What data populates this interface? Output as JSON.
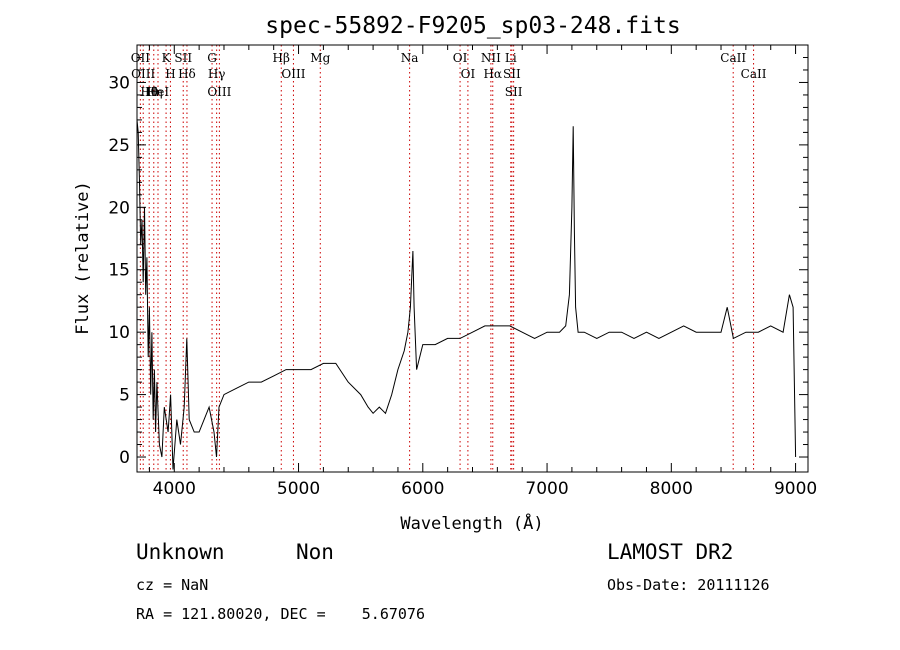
{
  "chart_data": {
    "type": "line",
    "title": "spec-55892-F9205_sp03-248.fits",
    "xlabel": "Wavelength (Å)",
    "ylabel": "Flux (relative)",
    "xlim": [
      3700,
      9100
    ],
    "ylim": [
      -1.2,
      33
    ],
    "x_ticks": [
      4000,
      5000,
      6000,
      7000,
      8000,
      9000
    ],
    "y_ticks": [
      0,
      5,
      10,
      15,
      20,
      25,
      30
    ],
    "series": [
      {
        "x": [
          3700,
          3710,
          3720,
          3730,
          3740,
          3750,
          3760,
          3770,
          3780,
          3790,
          3800,
          3810,
          3820,
          3830,
          3840,
          3850,
          3860,
          3880,
          3900,
          3920,
          3950,
          3970,
          3990,
          4020,
          4050,
          4080,
          4101,
          4120,
          4160,
          4200,
          4240,
          4280,
          4320,
          4340,
          4360,
          4400,
          4500,
          4600,
          4700,
          4800,
          4900,
          5000,
          5100,
          5200,
          5300,
          5400,
          5500,
          5560,
          5600,
          5650,
          5700,
          5750,
          5800,
          5850,
          5880,
          5900,
          5920,
          5930,
          5950,
          6000,
          6100,
          6200,
          6300,
          6400,
          6500,
          6600,
          6700,
          6800,
          6900,
          7000,
          7100,
          7150,
          7180,
          7200,
          7210,
          7220,
          7230,
          7250,
          7300,
          7400,
          7500,
          7600,
          7700,
          7800,
          7900,
          8000,
          8100,
          8200,
          8300,
          8400,
          8450,
          8500,
          8600,
          8700,
          8800,
          8900,
          8950,
          8980,
          9000
        ],
        "y": [
          27,
          26,
          22,
          17,
          19,
          14,
          20,
          13,
          16,
          8,
          12,
          5,
          10,
          3,
          7,
          2,
          6,
          1,
          0,
          4,
          2,
          5,
          -1,
          3,
          1,
          4,
          9.5,
          3,
          2,
          2,
          3,
          4,
          2,
          0,
          4,
          5,
          5.5,
          6,
          6,
          6.5,
          7,
          7,
          7,
          7.5,
          7.5,
          6,
          5,
          4,
          3.5,
          4,
          3.5,
          5,
          7,
          8.5,
          10,
          12,
          16.5,
          12,
          7,
          9,
          9,
          9.5,
          9.5,
          10,
          10.5,
          10.5,
          10.5,
          10,
          9.5,
          10,
          10,
          10.5,
          13,
          20,
          26.5,
          18,
          12,
          10,
          10,
          9.5,
          10,
          10,
          9.5,
          10,
          9.5,
          10,
          10.5,
          10,
          10,
          10,
          12,
          9.5,
          10,
          10,
          10.5,
          10,
          13,
          12,
          0
        ]
      }
    ],
    "spectral_lines": [
      {
        "wl": 3727,
        "label": "OII"
      },
      {
        "wl": 3750,
        "label": "OIII"
      },
      {
        "wl": 3798,
        "label": "Hθ"
      },
      {
        "wl": 3835,
        "label": "Hη"
      },
      {
        "wl": 3869,
        "label": "HeI"
      },
      {
        "wl": 3934,
        "label": "K"
      },
      {
        "wl": 3969,
        "label": "H"
      },
      {
        "wl": 4072,
        "label": "SII"
      },
      {
        "wl": 4102,
        "label": "Hδ"
      },
      {
        "wl": 4304,
        "label": "G"
      },
      {
        "wl": 4341,
        "label": "Hγ"
      },
      {
        "wl": 4363,
        "label": "OIII"
      },
      {
        "wl": 4861,
        "label": "Hβ"
      },
      {
        "wl": 4959,
        "label": "OIII"
      },
      {
        "wl": 5175,
        "label": "Mg"
      },
      {
        "wl": 5894,
        "label": "Na"
      },
      {
        "wl": 6300,
        "label": "OI"
      },
      {
        "wl": 6363,
        "label": "OI"
      },
      {
        "wl": 6548,
        "label": "NII"
      },
      {
        "wl": 6563,
        "label": "Hα"
      },
      {
        "wl": 6708,
        "label": "Li"
      },
      {
        "wl": 6717,
        "label": "SII"
      },
      {
        "wl": 6731,
        "label": "SII"
      },
      {
        "wl": 8498,
        "label": "CaII"
      },
      {
        "wl": 8662,
        "label": "CaII"
      }
    ],
    "grid": false,
    "line_color": "#000000",
    "marker_color": "#cc0000"
  },
  "info": {
    "class": "Unknown",
    "subclass": "Non",
    "survey": "LAMOST DR2",
    "cz": "cz = NaN",
    "obs_date": "Obs-Date: 20111126",
    "coords": "RA = 121.80020, DEC =    5.67076"
  }
}
